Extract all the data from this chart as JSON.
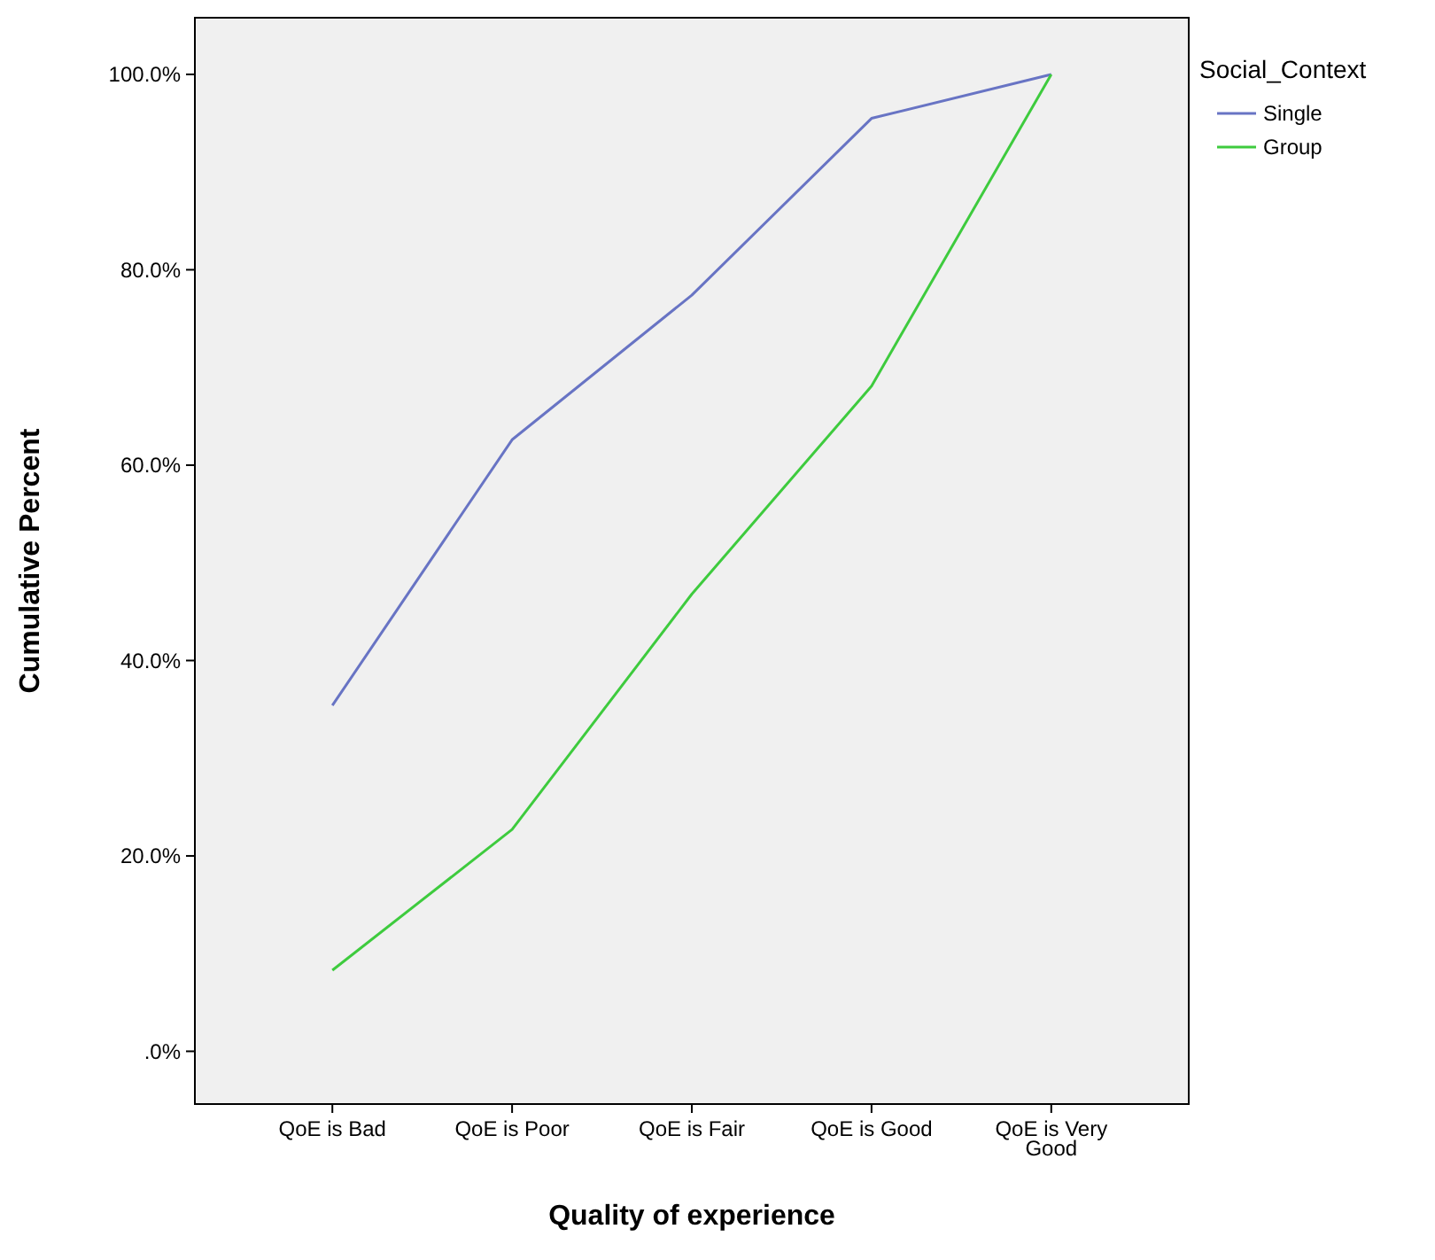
{
  "chart_data": {
    "type": "line",
    "xlabel": "Quality of experience",
    "ylabel": "Cumulative Percent",
    "legend_title": "Social_Context",
    "legend": "top right",
    "grid": false,
    "categories": [
      "QoE is Bad",
      "QoE is Poor",
      "QoE is Fair",
      "QoE is Good",
      "QoE is Very Good"
    ],
    "ylim": [
      -5.4,
      105.8
    ],
    "yticks": [
      {
        "value": 0,
        "label": ".0%"
      },
      {
        "value": 20,
        "label": "20.0%"
      },
      {
        "value": 40,
        "label": "40.0%"
      },
      {
        "value": 60,
        "label": "60.0%"
      },
      {
        "value": 80,
        "label": "80.0%"
      },
      {
        "value": 100,
        "label": "100.0%"
      }
    ],
    "series": [
      {
        "name": "Single",
        "color": "#6874c4",
        "values": [
          35.4,
          62.6,
          77.4,
          95.5,
          100
        ]
      },
      {
        "name": "Group",
        "color": "#3ecb3e",
        "values": [
          8.3,
          22.7,
          46.8,
          68.1,
          100
        ]
      }
    ]
  }
}
